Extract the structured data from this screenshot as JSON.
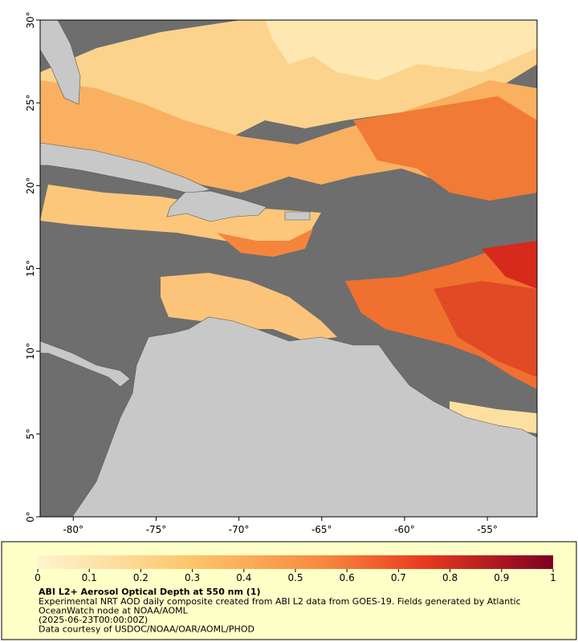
{
  "map": {
    "xlim": [
      -82,
      -52
    ],
    "ylim": [
      0,
      30
    ],
    "xticks": [
      {
        "value": -80,
        "label": "-80°"
      },
      {
        "value": -75,
        "label": "-75°"
      },
      {
        "value": -70,
        "label": "-70°"
      },
      {
        "value": -65,
        "label": "-65°"
      },
      {
        "value": -60,
        "label": "-60°"
      },
      {
        "value": -55,
        "label": "-55°"
      }
    ],
    "yticks": [
      {
        "value": 0,
        "label": "0°"
      },
      {
        "value": 5,
        "label": "5°"
      },
      {
        "value": 10,
        "label": "10°"
      },
      {
        "value": 15,
        "label": "15°"
      },
      {
        "value": 20,
        "label": "20°"
      },
      {
        "value": 25,
        "label": "25°"
      },
      {
        "value": 30,
        "label": "30°"
      }
    ]
  },
  "colorbar": {
    "lim": [
      0,
      1
    ],
    "ticks": [
      0,
      0.1,
      0.2,
      0.3,
      0.4,
      0.5,
      0.6,
      0.7,
      0.8,
      0.9,
      1
    ]
  },
  "caption": {
    "title": "ABI L2+ Aerosol Optical Depth at 550 nm (1)",
    "lines": [
      "Experimental NRT AOD daily composite created from ABI L2 data from GOES-19. Fields generated by Atlantic",
      "OceanWatch node at NOAA/AOML",
      "(2025-06-23T00:00:00Z)",
      "Data courtesy of USDOC/NOAA/OAR/AOML/PHOD"
    ]
  }
}
